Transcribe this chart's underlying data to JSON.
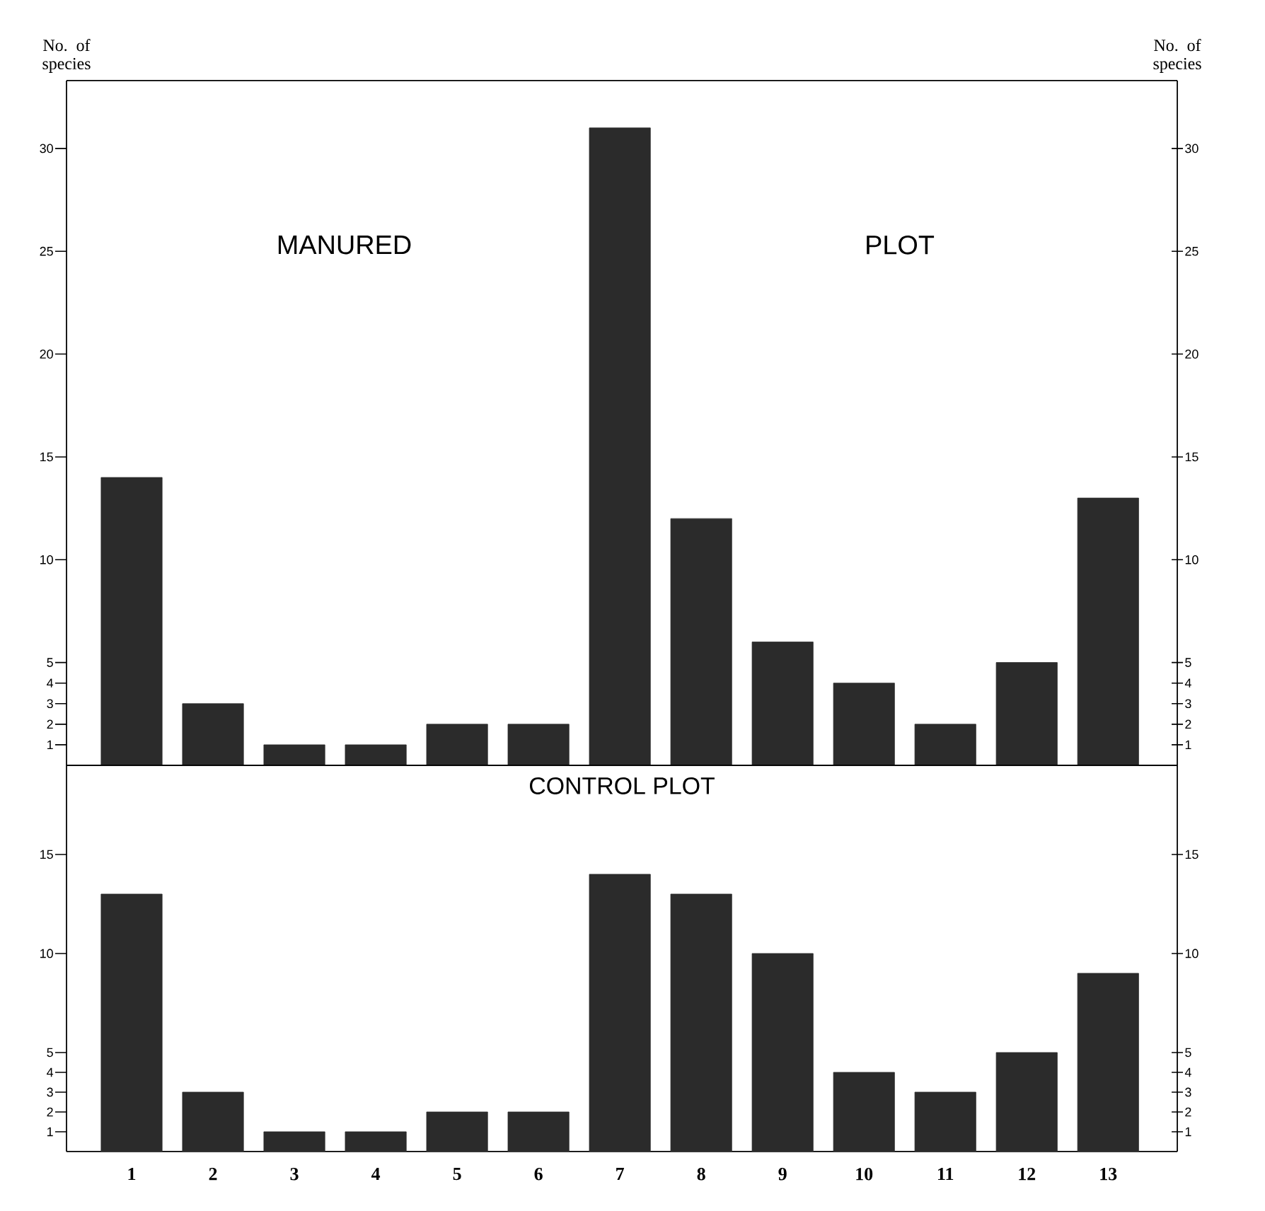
{
  "chart_data": [
    {
      "type": "bar",
      "annotations": [
        "MANURED",
        "PLOT"
      ],
      "ylabel": "No. of species",
      "y2label": "No. of species",
      "categories": [
        "1",
        "2",
        "3",
        "4",
        "5",
        "6",
        "7",
        "8",
        "9",
        "10",
        "11",
        "12",
        "13"
      ],
      "values": [
        14,
        3,
        1,
        1,
        2,
        2,
        31,
        12,
        6,
        4,
        2,
        5,
        13
      ],
      "color": "#2b2b2b",
      "ylim": [
        0,
        33.3
      ],
      "yticks": [
        1,
        2,
        3,
        4,
        5,
        10,
        15,
        20,
        25,
        30
      ],
      "y2lim": [
        0,
        33.3
      ],
      "y2ticks": [
        1,
        2,
        3,
        4,
        5,
        10,
        15,
        20,
        25,
        30
      ],
      "tick_labels": "y"
    },
    {
      "type": "bar",
      "title": "CONTROL PLOT",
      "categories": [
        "1",
        "2",
        "3",
        "4",
        "5",
        "6",
        "7",
        "8",
        "9",
        "10",
        "11",
        "12",
        "13"
      ],
      "values": [
        13,
        3,
        1,
        1,
        2,
        2,
        14,
        13,
        10,
        4,
        3,
        5,
        9
      ],
      "color": "#2b2b2b",
      "ylim": [
        0,
        19.5
      ],
      "yticks": [
        1,
        2,
        3,
        4,
        5,
        10,
        15
      ],
      "y2lim": [
        0,
        19.5
      ],
      "y2ticks": [
        1,
        2,
        3,
        4,
        5,
        10,
        15
      ]
    }
  ]
}
